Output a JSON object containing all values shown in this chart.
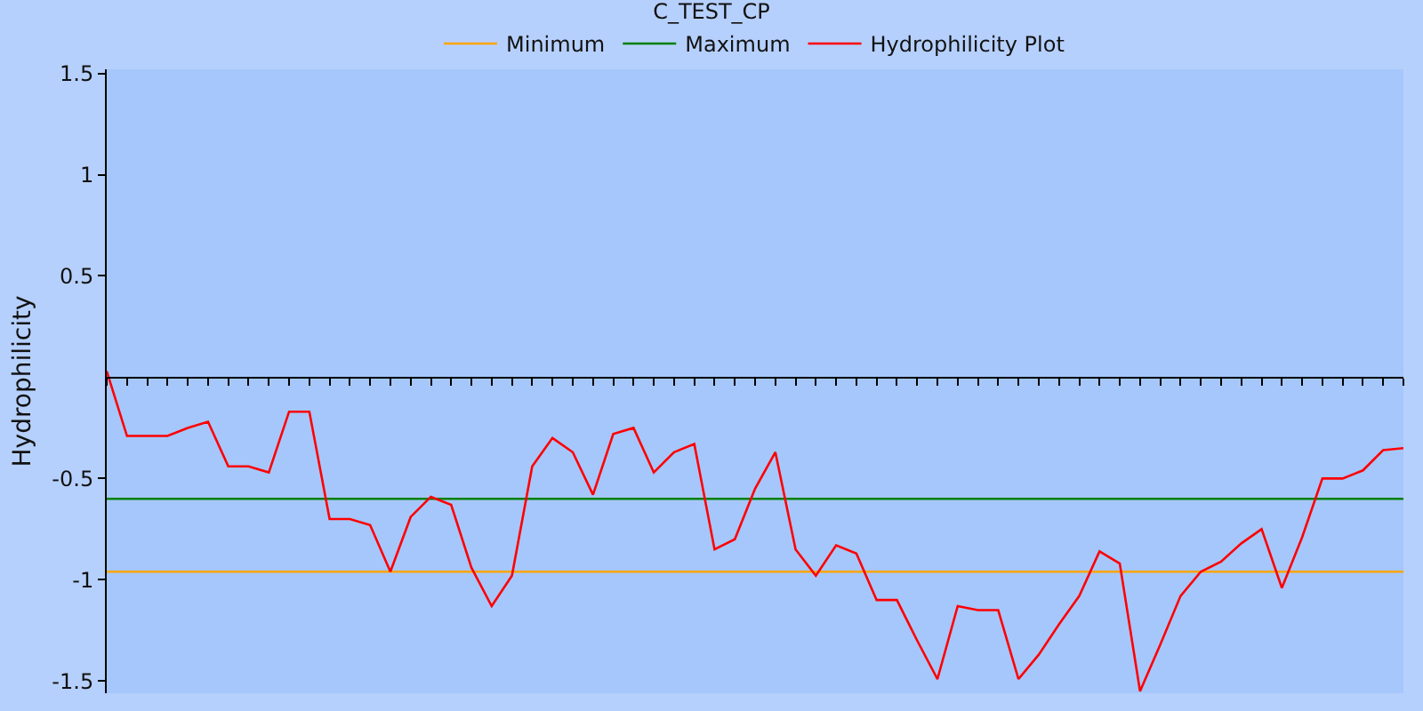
{
  "chart_data": {
    "type": "line",
    "title": "C_TEST_CP",
    "ylabel": "Hydrophilicity",
    "categories": [
      null,
      null,
      null,
      null,
      null,
      null,
      null,
      null,
      null,
      null,
      null,
      null,
      null,
      null,
      null,
      null,
      null,
      null,
      null,
      null,
      null,
      null,
      null,
      null,
      null,
      null,
      null,
      null,
      null,
      null,
      null,
      null,
      null,
      null,
      null,
      null,
      null,
      null,
      null,
      null,
      null,
      null,
      null,
      null,
      null,
      null,
      null,
      null,
      null,
      null,
      null,
      null,
      null,
      null,
      null,
      null,
      null,
      null,
      null,
      null,
      null,
      null,
      null,
      null,
      null
    ],
    "series": [
      {
        "name": "Minimum",
        "color": "#ffa500",
        "values": [
          -0.96,
          -0.96,
          -0.96,
          -0.96,
          -0.96,
          -0.96,
          -0.96,
          -0.96,
          -0.96,
          -0.96,
          -0.96,
          -0.96,
          -0.96,
          -0.96,
          -0.96,
          -0.96,
          -0.96,
          -0.96,
          -0.96,
          -0.96,
          -0.96,
          -0.96,
          -0.96,
          -0.96,
          -0.96,
          -0.96,
          -0.96,
          -0.96,
          -0.96,
          -0.96,
          -0.96,
          -0.96,
          -0.96,
          -0.96,
          -0.96,
          -0.96,
          -0.96,
          -0.96,
          -0.96,
          -0.96,
          -0.96,
          -0.96,
          -0.96,
          -0.96,
          -0.96,
          -0.96,
          -0.96,
          -0.96,
          -0.96,
          -0.96,
          -0.96,
          -0.96,
          -0.96,
          -0.96,
          -0.96,
          -0.96,
          -0.96,
          -0.96,
          -0.96,
          -0.96,
          -0.96,
          -0.96,
          -0.96,
          -0.96,
          -0.96
        ]
      },
      {
        "name": "Maximum",
        "color": "#008000",
        "values": [
          -0.6,
          -0.6,
          -0.6,
          -0.6,
          -0.6,
          -0.6,
          -0.6,
          -0.6,
          -0.6,
          -0.6,
          -0.6,
          -0.6,
          -0.6,
          -0.6,
          -0.6,
          -0.6,
          -0.6,
          -0.6,
          -0.6,
          -0.6,
          -0.6,
          -0.6,
          -0.6,
          -0.6,
          -0.6,
          -0.6,
          -0.6,
          -0.6,
          -0.6,
          -0.6,
          -0.6,
          -0.6,
          -0.6,
          -0.6,
          -0.6,
          -0.6,
          -0.6,
          -0.6,
          -0.6,
          -0.6,
          -0.6,
          -0.6,
          -0.6,
          -0.6,
          -0.6,
          -0.6,
          -0.6,
          -0.6,
          -0.6,
          -0.6,
          -0.6,
          -0.6,
          -0.6,
          -0.6,
          -0.6,
          -0.6,
          -0.6,
          -0.6,
          -0.6,
          -0.6,
          -0.6,
          -0.6,
          -0.6,
          -0.6,
          -0.6
        ]
      },
      {
        "name": "Hydrophilicity Plot",
        "color": "#ff0000",
        "values": [
          0.03,
          -0.29,
          -0.29,
          -0.29,
          -0.25,
          -0.22,
          -0.44,
          -0.44,
          -0.47,
          -0.17,
          -0.17,
          -0.7,
          -0.7,
          -0.73,
          -0.96,
          -0.69,
          -0.59,
          -0.63,
          -0.94,
          -1.13,
          -0.98,
          -0.44,
          -0.3,
          -0.37,
          -0.58,
          -0.28,
          -0.25,
          -0.47,
          -0.37,
          -0.33,
          -0.85,
          -0.8,
          -0.55,
          -0.37,
          -0.85,
          -0.98,
          -0.83,
          -0.87,
          -1.1,
          -1.1,
          -1.3,
          -1.49,
          -1.13,
          -1.15,
          -1.15,
          -1.49,
          -1.37,
          -1.22,
          -1.08,
          -0.86,
          -0.92,
          -1.55,
          -1.32,
          -1.08,
          -0.96,
          -0.91,
          -0.82,
          -0.75,
          -1.04,
          -0.79,
          -0.5,
          -0.5,
          -0.46,
          -0.36,
          -0.35
        ]
      }
    ],
    "ylim": [
      -1.56,
      1.52
    ],
    "yticks": [
      -1.5,
      -1,
      -0.5,
      0.5,
      1,
      1.5
    ],
    "tick_labels": "y",
    "grid": false,
    "legend": "top",
    "marker": "none",
    "line_style": "solid"
  }
}
